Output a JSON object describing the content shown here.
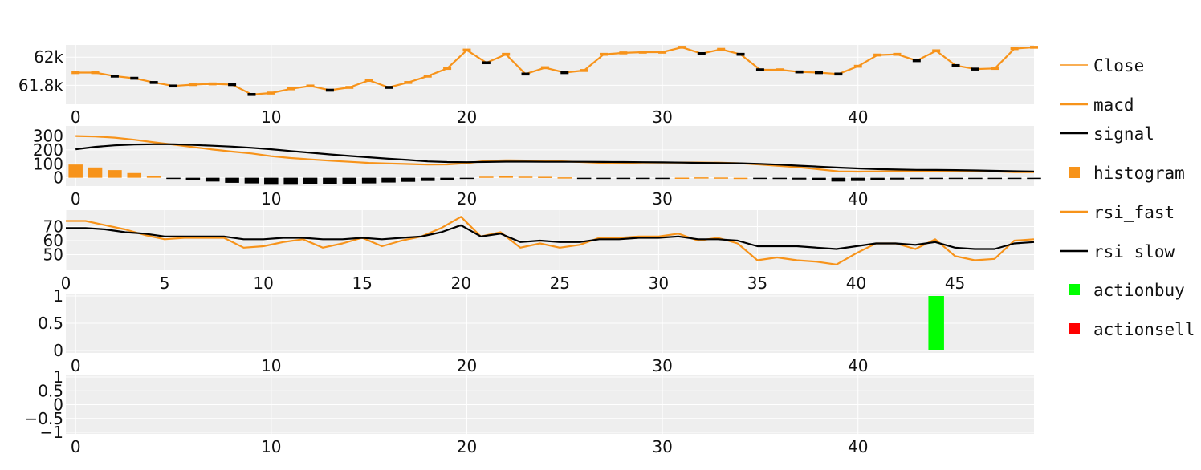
{
  "colors": {
    "panel_bg": "#eeeeee",
    "grid": "#ffffff",
    "orange": "#f7931a",
    "black": "#000000",
    "buy": "#00ff00",
    "sell": "#ff0000"
  },
  "chart_data": [
    {
      "type": "line",
      "panel": "price",
      "xlim": [
        -0.5,
        49.0
      ],
      "ylim": [
        61677,
        62075
      ],
      "y_ticks": [
        61800,
        62000
      ],
      "y_tick_labels": [
        "61.8k",
        "62k"
      ],
      "x_ticks": [
        0,
        10,
        20,
        30,
        40
      ],
      "x_tick_labels": [
        "0",
        "10",
        "20",
        "30",
        "40"
      ],
      "series": [
        {
          "name": "Close",
          "color": "#f7931a",
          "values": [
            61890,
            61890,
            61865,
            61850,
            61820,
            61795,
            61805,
            61810,
            61805,
            61735,
            61745,
            61775,
            61795,
            61765,
            61785,
            61835,
            61785,
            61820,
            61865,
            61920,
            62050,
            61960,
            62020,
            61880,
            61925,
            61890,
            61905,
            62020,
            62030,
            62035,
            62035,
            62070,
            62025,
            62055,
            62020,
            61910,
            61910,
            61895,
            61890,
            61880,
            61935,
            62015,
            62020,
            61975,
            62045,
            61940,
            61915,
            61920,
            62060,
            62070
          ]
        }
      ]
    },
    {
      "type": "line",
      "panel": "macd",
      "xlim": [
        -0.5,
        49.0
      ],
      "ylim": [
        -48,
        355
      ],
      "y_ticks": [
        0,
        100,
        200,
        300
      ],
      "y_tick_labels": [
        "0",
        "100",
        "200",
        "300"
      ],
      "x_ticks": [
        0,
        10,
        20,
        30,
        40
      ],
      "x_tick_labels": [
        "0",
        "10",
        "20",
        "30",
        "40"
      ],
      "series": [
        {
          "name": "macd",
          "color": "#f7931a",
          "values": [
            300,
            296,
            288,
            273,
            255,
            238,
            220,
            203,
            188,
            175,
            155,
            142,
            132,
            123,
            115,
            107,
            103,
            99,
            95,
            96,
            105,
            122,
            126,
            124,
            122,
            118,
            112,
            107,
            107,
            109,
            110,
            110,
            110,
            108,
            104,
            95,
            85,
            75,
            61,
            46,
            44,
            46,
            47,
            48,
            48,
            50,
            50,
            45,
            40,
            40
          ]
        },
        {
          "name": "signal",
          "color": "#000000",
          "values": [
            205,
            222,
            233,
            239,
            241,
            241,
            236,
            230,
            224,
            215,
            205,
            192,
            180,
            168,
            157,
            147,
            137,
            128,
            118,
            113,
            112,
            114,
            116,
            116,
            115,
            115,
            115,
            114,
            113,
            112,
            111,
            109,
            107,
            106,
            104,
            100,
            94,
            87,
            80,
            73,
            67,
            62,
            59,
            57,
            56,
            55,
            53,
            50,
            47,
            45
          ]
        },
        {
          "name": "histogram",
          "color": "#f7931a",
          "values": [
            95,
            74,
            55,
            34,
            14,
            -3,
            -16,
            -27,
            -36,
            -40,
            -50,
            -50,
            -48,
            -45,
            -42,
            -40,
            -34,
            -29,
            -23,
            -17,
            -7,
            8,
            10,
            8,
            7,
            3,
            -3,
            -7,
            -6,
            -3,
            -1,
            1,
            3,
            2,
            0,
            -5,
            -9,
            -12,
            -19,
            -27,
            -23,
            -16,
            -12,
            -9,
            -8,
            -5,
            -3,
            -5,
            -7,
            -5
          ]
        }
      ]
    },
    {
      "type": "line",
      "panel": "rsi",
      "xlim": [
        0,
        49.0
      ],
      "ylim": [
        40,
        80
      ],
      "y_ticks": [
        50,
        60,
        70
      ],
      "y_tick_labels": [
        "50",
        "60",
        "70"
      ],
      "x_ticks": [
        0,
        5,
        10,
        15,
        20,
        25,
        30,
        35,
        40,
        45
      ],
      "x_tick_labels": [
        "0",
        "5",
        "10",
        "15",
        "20",
        "25",
        "30",
        "35",
        "40",
        "45"
      ],
      "series": [
        {
          "name": "rsi_fast",
          "color": "#f7931a",
          "values": [
            74,
            74,
            71,
            68,
            64,
            61,
            62,
            62,
            62,
            55,
            56,
            59,
            61,
            55,
            58,
            62,
            56,
            60,
            63,
            69,
            77,
            63,
            66,
            55,
            58,
            55,
            57,
            62,
            62,
            63,
            63,
            65,
            60,
            62,
            58,
            46,
            48,
            46,
            45,
            43,
            51,
            58,
            58,
            54,
            61,
            49,
            46,
            47,
            60,
            61
          ]
        },
        {
          "name": "rsi_slow",
          "color": "#000000",
          "values": [
            69,
            69,
            68,
            66,
            65,
            63,
            63,
            63,
            63,
            61,
            61,
            62,
            62,
            61,
            61,
            62,
            61,
            62,
            63,
            66,
            71,
            63,
            65,
            59,
            60,
            59,
            59,
            61,
            61,
            62,
            62,
            63,
            61,
            61,
            60,
            56,
            56,
            56,
            55,
            54,
            56,
            58,
            58,
            57,
            59,
            55,
            54,
            54,
            58,
            59
          ]
        }
      ]
    },
    {
      "type": "bar",
      "panel": "action",
      "xlim": [
        -0.5,
        49.0
      ],
      "ylim": [
        0,
        1
      ],
      "y_ticks": [
        0,
        0.5,
        1
      ],
      "y_tick_labels": [
        "0",
        "0.5",
        "1"
      ],
      "x_ticks": [
        0,
        10,
        20,
        30,
        40
      ],
      "x_tick_labels": [
        "0",
        "10",
        "20",
        "30",
        "40"
      ],
      "series": [
        {
          "name": "actionbuy",
          "color": "#00ff00",
          "x": [
            44
          ],
          "values": [
            1
          ]
        },
        {
          "name": "actionsell",
          "color": "#ff0000",
          "x": [],
          "values": []
        }
      ]
    },
    {
      "type": "line",
      "panel": "empty",
      "xlim": [
        -0.5,
        49.0
      ],
      "ylim": [
        -1,
        1
      ],
      "y_ticks": [
        -1,
        -0.5,
        0,
        0.5,
        1
      ],
      "y_tick_labels": [
        "−1",
        "−0.5",
        "0",
        "0.5",
        "1"
      ],
      "x_ticks": [
        0,
        10,
        20,
        30,
        40
      ],
      "x_tick_labels": [
        "0",
        "10",
        "20",
        "30",
        "40"
      ],
      "series": []
    }
  ],
  "legend": {
    "placement": "right",
    "items": [
      {
        "label": "Close",
        "kind": "line",
        "color": "#f7931a"
      },
      {
        "label": "macd",
        "kind": "line",
        "color": "#f7931a"
      },
      {
        "label": "signal",
        "kind": "line",
        "color": "#000000"
      },
      {
        "label": "histogram",
        "kind": "square",
        "color": "#f7931a"
      },
      {
        "label": "rsi_fast",
        "kind": "line",
        "color": "#f7931a"
      },
      {
        "label": "rsi_slow",
        "kind": "line",
        "color": "#000000"
      },
      {
        "label": "actionbuy",
        "kind": "square",
        "color": "#00ff00"
      },
      {
        "label": "actionsell",
        "kind": "square",
        "color": "#ff0000"
      }
    ]
  }
}
